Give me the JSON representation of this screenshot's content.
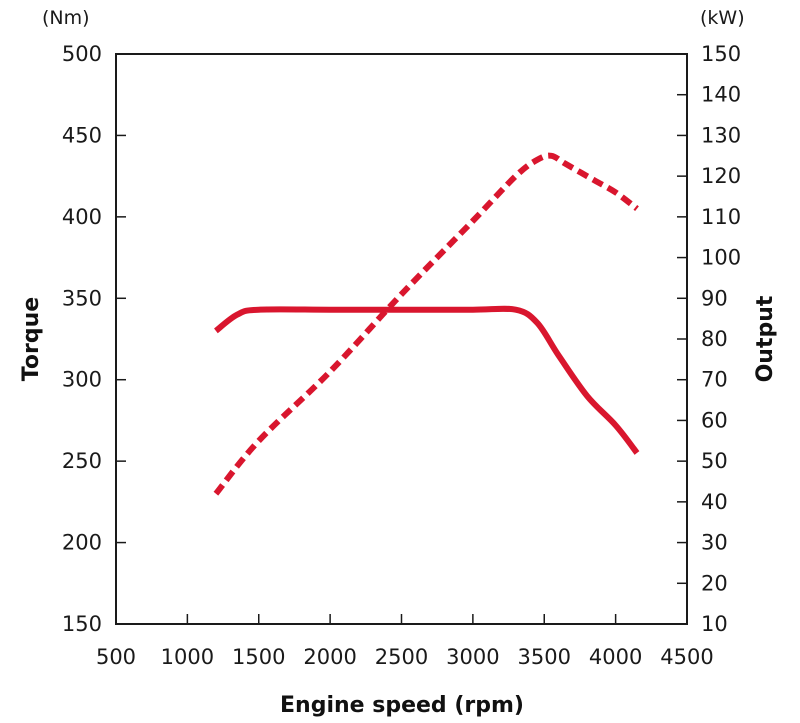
{
  "chart_data": {
    "type": "line",
    "xlabel": "Engine speed (rpm)",
    "ylabel_left": "Torque",
    "ylabel_right": "Output",
    "unit_left": "(Nm)",
    "unit_right": "(kW)",
    "xlim": [
      500,
      4500
    ],
    "ylim_left": [
      150,
      500
    ],
    "ylim_right": [
      10,
      150
    ],
    "x_ticks": [
      500,
      1000,
      1500,
      2000,
      2500,
      3000,
      3500,
      4000,
      4500
    ],
    "y_left_ticks": [
      150,
      200,
      250,
      300,
      350,
      400,
      450,
      500
    ],
    "y_right_ticks": [
      10,
      20,
      30,
      40,
      50,
      60,
      70,
      80,
      90,
      100,
      110,
      120,
      130,
      140,
      150
    ],
    "grid": false,
    "colors": {
      "series": "#d9162e",
      "axis": "#1a1a1a"
    },
    "series": [
      {
        "axis": "left",
        "style": "solid",
        "x": [
          1200,
          1350,
          1500,
          2000,
          2500,
          3000,
          3300,
          3450,
          3600,
          3800,
          4000,
          4150
        ],
        "values": [
          330,
          340,
          343,
          343,
          343,
          343,
          343,
          335,
          315,
          290,
          272,
          255
        ]
      },
      {
        "axis": "right",
        "style": "dashed",
        "x": [
          1200,
          1500,
          2000,
          2500,
          3000,
          3300,
          3450,
          3550,
          3650,
          3850,
          4000,
          4150
        ],
        "values": [
          42,
          55,
          72,
          91,
          109,
          120,
          124,
          125,
          123,
          119,
          116,
          112
        ]
      }
    ]
  }
}
